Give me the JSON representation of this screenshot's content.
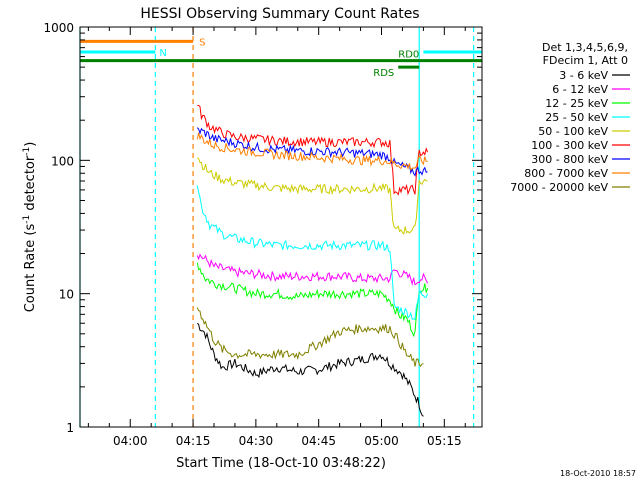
{
  "chart_data": {
    "type": "line",
    "title": "HESSI Observing Summary Count Rates",
    "xlabel": "Start Time (18-Oct-10 03:48:22)",
    "ylabel_main": "Count Rate (s",
    "ylabel_sup1": "-1",
    "ylabel_mid": " detector",
    "ylabel_sup2": "-1",
    "ylabel_end": ")",
    "y_scale": "log",
    "ylim": [
      1,
      1000
    ],
    "xlim": [
      "03:48",
      "05:24"
    ],
    "x_ticks": [
      "04:00",
      "04:15",
      "04:30",
      "04:45",
      "05:00",
      "05:15"
    ],
    "y_ticks": [
      "1",
      "10",
      "100",
      "1000"
    ],
    "timestamp": "18-Oct-2010 18:57",
    "legend": {
      "placement": "right",
      "header": [
        "Det 1,3,4,5,6,9,",
        "FDecim 1, Att 0"
      ]
    },
    "series": [
      {
        "name": "3 - 6 keV",
        "color": "#000000",
        "points": [
          [
            "04:16",
            6
          ],
          [
            "04:18",
            5
          ],
          [
            "04:20",
            3.5
          ],
          [
            "04:22",
            2.8
          ],
          [
            "04:25",
            3
          ],
          [
            "04:30",
            2.5
          ],
          [
            "04:35",
            2.8
          ],
          [
            "04:40",
            2.6
          ],
          [
            "04:45",
            2.7
          ],
          [
            "04:50",
            3
          ],
          [
            "04:55",
            3.2
          ],
          [
            "05:00",
            3.5
          ],
          [
            "05:02",
            3
          ],
          [
            "05:05",
            2.5
          ],
          [
            "05:07",
            2
          ],
          [
            "05:09",
            1.5
          ],
          [
            "05:10",
            1.2
          ]
        ]
      },
      {
        "name": "6 - 12 keV",
        "color": "#ff00ff",
        "points": [
          [
            "04:16",
            20
          ],
          [
            "04:18",
            18
          ],
          [
            "04:20",
            16
          ],
          [
            "04:25",
            14.5
          ],
          [
            "04:30",
            14
          ],
          [
            "04:35",
            13.5
          ],
          [
            "04:40",
            13.5
          ],
          [
            "04:45",
            13.5
          ],
          [
            "04:50",
            13.5
          ],
          [
            "04:55",
            13
          ],
          [
            "05:00",
            13
          ],
          [
            "05:02",
            13
          ],
          [
            "05:03",
            15
          ],
          [
            "05:05",
            14
          ],
          [
            "05:07",
            13
          ],
          [
            "05:08",
            12
          ],
          [
            "05:09",
            13
          ],
          [
            "05:10",
            13
          ],
          [
            "05:11",
            12
          ]
        ]
      },
      {
        "name": "12 - 25 keV",
        "color": "#00ff00",
        "points": [
          [
            "04:16",
            17
          ],
          [
            "04:18",
            13
          ],
          [
            "04:20",
            12
          ],
          [
            "04:25",
            11
          ],
          [
            "04:30",
            10
          ],
          [
            "04:35",
            10
          ],
          [
            "04:40",
            9.5
          ],
          [
            "04:45",
            10
          ],
          [
            "04:50",
            10
          ],
          [
            "04:55",
            10
          ],
          [
            "05:00",
            10
          ],
          [
            "05:02",
            9
          ],
          [
            "05:04",
            7
          ],
          [
            "05:06",
            6.5
          ],
          [
            "05:08",
            5
          ],
          [
            "05:09",
            11
          ],
          [
            "05:11",
            11
          ]
        ]
      },
      {
        "name": "25 - 50 keV",
        "color": "#00ffff",
        "points": [
          [
            "04:16",
            70
          ],
          [
            "04:17",
            45
          ],
          [
            "04:19",
            33
          ],
          [
            "04:22",
            28
          ],
          [
            "04:25",
            26
          ],
          [
            "04:30",
            24
          ],
          [
            "04:35",
            23
          ],
          [
            "04:40",
            23
          ],
          [
            "04:45",
            23
          ],
          [
            "04:50",
            23
          ],
          [
            "04:55",
            23
          ],
          [
            "05:00",
            23
          ],
          [
            "05:02",
            22
          ],
          [
            "05:03",
            8
          ],
          [
            "05:05",
            7.5
          ],
          [
            "05:07",
            7
          ],
          [
            "05:08",
            6.5
          ],
          [
            "05:09",
            10
          ],
          [
            "05:11",
            10
          ]
        ]
      },
      {
        "name": "50 - 100 keV",
        "color": "#cccc00",
        "points": [
          [
            "04:16",
            110
          ],
          [
            "04:17",
            95
          ],
          [
            "04:19",
            80
          ],
          [
            "04:22",
            72
          ],
          [
            "04:25",
            68
          ],
          [
            "04:30",
            65
          ],
          [
            "04:35",
            62
          ],
          [
            "04:40",
            61
          ],
          [
            "04:45",
            61
          ],
          [
            "04:50",
            61
          ],
          [
            "04:55",
            61
          ],
          [
            "05:00",
            62
          ],
          [
            "05:02",
            60
          ],
          [
            "05:03",
            30
          ],
          [
            "05:05",
            30
          ],
          [
            "05:07",
            30
          ],
          [
            "05:08",
            30
          ],
          [
            "05:09",
            70
          ],
          [
            "05:11",
            70
          ]
        ]
      },
      {
        "name": "100 - 300 keV",
        "color": "#ff0000",
        "points": [
          [
            "04:16",
            270
          ],
          [
            "04:17",
            220
          ],
          [
            "04:19",
            180
          ],
          [
            "04:22",
            160
          ],
          [
            "04:25",
            150
          ],
          [
            "04:30",
            145
          ],
          [
            "04:35",
            140
          ],
          [
            "04:40",
            138
          ],
          [
            "04:45",
            137
          ],
          [
            "04:50",
            137
          ],
          [
            "04:55",
            137
          ],
          [
            "05:00",
            137
          ],
          [
            "05:02",
            135
          ],
          [
            "05:03",
            60
          ],
          [
            "05:05",
            60
          ],
          [
            "05:07",
            60
          ],
          [
            "05:08",
            60
          ],
          [
            "05:09",
            115
          ],
          [
            "05:11",
            115
          ]
        ]
      },
      {
        "name": "300 - 800 keV",
        "color": "#0000ff",
        "points": [
          [
            "04:16",
            170
          ],
          [
            "04:18",
            160
          ],
          [
            "04:20",
            145
          ],
          [
            "04:25",
            135
          ],
          [
            "04:30",
            125
          ],
          [
            "04:35",
            120
          ],
          [
            "04:40",
            118
          ],
          [
            "04:45",
            117
          ],
          [
            "04:50",
            115
          ],
          [
            "04:55",
            113
          ],
          [
            "05:00",
            110
          ],
          [
            "05:02",
            105
          ],
          [
            "05:03",
            95
          ],
          [
            "05:05",
            90
          ],
          [
            "05:07",
            85
          ],
          [
            "05:08",
            82
          ],
          [
            "05:09",
            85
          ],
          [
            "05:11",
            82
          ]
        ]
      },
      {
        "name": "800 - 7000 keV",
        "color": "#ff8000",
        "points": [
          [
            "04:16",
            155
          ],
          [
            "04:18",
            140
          ],
          [
            "04:20",
            130
          ],
          [
            "04:25",
            120
          ],
          [
            "04:30",
            115
          ],
          [
            "04:35",
            110
          ],
          [
            "04:40",
            108
          ],
          [
            "04:45",
            105
          ],
          [
            "04:50",
            103
          ],
          [
            "04:55",
            100
          ],
          [
            "05:00",
            100
          ],
          [
            "05:02",
            98
          ],
          [
            "05:03",
            95
          ],
          [
            "05:05",
            92
          ],
          [
            "05:07",
            90
          ],
          [
            "05:08",
            88
          ],
          [
            "05:09",
            100
          ],
          [
            "05:11",
            98
          ]
        ]
      },
      {
        "name": "7000 - 20000 keV",
        "color": "#808000",
        "points": [
          [
            "04:16",
            8
          ],
          [
            "04:18",
            6
          ],
          [
            "04:20",
            4.5
          ],
          [
            "04:22",
            3.8
          ],
          [
            "04:25",
            3.5
          ],
          [
            "04:30",
            3.5
          ],
          [
            "04:35",
            3.5
          ],
          [
            "04:40",
            3.5
          ],
          [
            "04:45",
            4.2
          ],
          [
            "04:50",
            5.2
          ],
          [
            "04:55",
            5.5
          ],
          [
            "05:00",
            5.5
          ],
          [
            "05:02",
            5.5
          ],
          [
            "05:04",
            4.5
          ],
          [
            "05:06",
            3.5
          ],
          [
            "05:08",
            3
          ],
          [
            "05:10",
            3
          ]
        ]
      }
    ],
    "bars": [
      {
        "label": "S",
        "color": "#ff8000",
        "y": 780,
        "segments": [
          [
            "03:48",
            "04:15"
          ]
        ]
      },
      {
        "label": "N",
        "color": "#00ffff",
        "y": 650,
        "segments": [
          [
            "03:48",
            "04:06"
          ],
          [
            "05:10",
            "05:24"
          ]
        ]
      },
      {
        "label": "RD0",
        "color": "#008000",
        "y": 560,
        "segments": [
          [
            "03:48",
            "05:24"
          ]
        ]
      },
      {
        "label": "RDS",
        "color": "#008000",
        "y": 500,
        "segments": [
          [
            "05:04",
            "05:09"
          ]
        ]
      }
    ],
    "vertical_markers": [
      {
        "time": "03:48",
        "color": "#00ffff",
        "style": "solid"
      },
      {
        "time": "04:06",
        "color": "#00ffff",
        "style": "dashed"
      },
      {
        "time": "04:15",
        "color": "#ff8000",
        "style": "dashed"
      },
      {
        "time": "05:09",
        "color": "#00ffff",
        "style": "solid"
      },
      {
        "time": "05:22",
        "color": "#00ffff",
        "style": "dashed"
      }
    ]
  }
}
